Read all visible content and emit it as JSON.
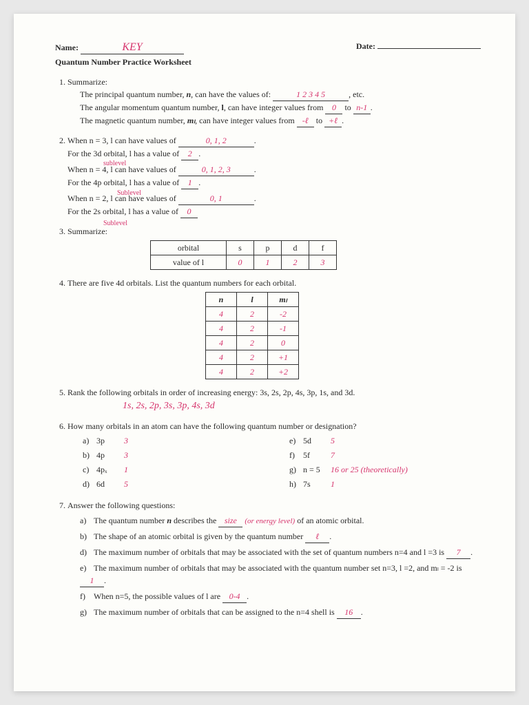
{
  "header": {
    "name_label": "Name:",
    "name_value": "KEY",
    "date_label": "Date:",
    "date_value": " "
  },
  "title": "Quantum Number Practice Worksheet",
  "q1": {
    "label": "Summarize:",
    "line1_a": "The principal quantum number, ",
    "line1_var": "n",
    "line1_b": ", can have the values of: ",
    "line1_ans": "1  2  3  4  5",
    "line1_c": ", etc.",
    "line2_a": "The angular momentum quantum number, ",
    "line2_var": "l",
    "line2_b": ", can have integer values from ",
    "line2_ans1": "0",
    "line2_mid": " to ",
    "line2_ans2": "n-1",
    "line2_end": ".",
    "line3_a": "The magnetic quantum number, ",
    "line3_var": "mₗ",
    "line3_b": ", can have integer values from ",
    "line3_ans1": "-ℓ",
    "line3_mid": " to ",
    "line3_ans2": "+ℓ",
    "line3_end": "."
  },
  "q2": {
    "p1a": "When n = 3, l can have values of ",
    "p1ans": "0, 1, 2",
    "p1end": ".",
    "p1b": "For the 3d orbital, l has a value of ",
    "p1b_ans": "2",
    "note1": "sublevel",
    "p2a": "When n = 4, l can have values of ",
    "p2ans": "0, 1, 2, 3",
    "p2b": "For the 4p orbital, l has a value of ",
    "p2b_ans": "1",
    "note2": "Sublevel",
    "p3a": "When n = 2, l can have values of ",
    "p3ans": "0, 1",
    "p3b": "For the 2s orbital, l has a value of ",
    "p3b_ans": "0",
    "note3": "Sublevel"
  },
  "q3": {
    "label": "Summarize:",
    "table": {
      "r1": [
        "orbital",
        "s",
        "p",
        "d",
        "f"
      ],
      "r2": [
        "value of l",
        "0",
        "1",
        "2",
        "3"
      ],
      "hand_cols": [
        false,
        true,
        true,
        true,
        true
      ]
    }
  },
  "q4": {
    "text": "There are five 4d orbitals.  List the quantum numbers for each orbital.",
    "headers": [
      "n",
      "l",
      "mₗ"
    ],
    "rows": [
      [
        "4",
        "2",
        "-2"
      ],
      [
        "4",
        "2",
        "-1"
      ],
      [
        "4",
        "2",
        "0"
      ],
      [
        "4",
        "2",
        "+1"
      ],
      [
        "4",
        "2",
        "+2"
      ]
    ]
  },
  "q5": {
    "text": "Rank the following orbitals in order of increasing energy:  3s, 2s, 2p, 4s, 3p, 1s, and 3d.",
    "answer": "1s,  2s,  2p,  3s,  3p,  4s,  3d"
  },
  "q6": {
    "text": "How many orbitals in an atom can have the following quantum number or designation?",
    "left": [
      {
        "letter": "a)",
        "label": "3p",
        "ans": "3"
      },
      {
        "letter": "b)",
        "label": "4p",
        "ans": "3"
      },
      {
        "letter": "c)",
        "label": "4pₓ",
        "ans": "1"
      },
      {
        "letter": "d)",
        "label": "6d",
        "ans": "5"
      }
    ],
    "right": [
      {
        "letter": "e)",
        "label": "5d",
        "ans": "5"
      },
      {
        "letter": "f)",
        "label": "5f",
        "ans": "7"
      },
      {
        "letter": "g)",
        "label": "n = 5",
        "ans": "16 or 25 (theoretically)"
      },
      {
        "letter": "h)",
        "label": "7s",
        "ans": "1"
      }
    ]
  },
  "q7": {
    "text": "Answer the following questions:",
    "items": [
      {
        "letter": "a)",
        "pre": "The quantum number ",
        "var": "n",
        "mid": " describes the ",
        "ans": "size",
        "post": " of an atomic orbital.",
        "note": "(or energy level)"
      },
      {
        "letter": "b)",
        "pre": "The shape of an atomic orbital is given by the quantum number ",
        "ans": "ℓ",
        "post": "."
      },
      {
        "letter": "d)",
        "pre": "The maximum number of orbitals that may be associated with the set of quantum numbers n=4 and l =3 is ",
        "ans": "7",
        "post": "."
      },
      {
        "letter": "e)",
        "pre": "The maximum number of orbitals that may be associated with the quantum number set n=3, l =2, and mₗ = -2 is ",
        "ans": "1",
        "post": "."
      },
      {
        "letter": "f)",
        "pre": "When n=5, the possible values of l are ",
        "ans": "0-4",
        "post": "."
      },
      {
        "letter": "g)",
        "pre": "The maximum number of orbitals that can be assigned to the n=4 shell is ",
        "ans": "16",
        "post": "."
      }
    ]
  }
}
